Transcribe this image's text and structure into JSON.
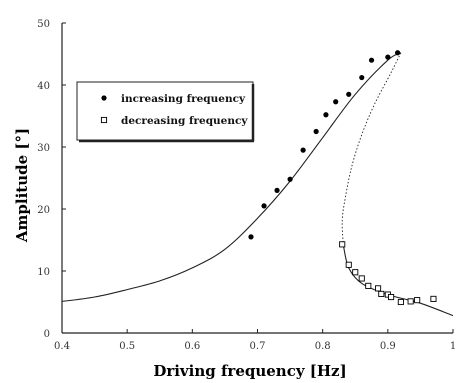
{
  "chart_data": {
    "type": "scatter",
    "title": "",
    "xlabel": "Driving frequency [Hz]",
    "ylabel": "Amplitude [°]",
    "xlim": [
      0.4,
      1.0
    ],
    "ylim": [
      0,
      50
    ],
    "x_ticks": [
      "0.4",
      "0.5",
      "0.6",
      "0.7",
      "0.8",
      "0.9",
      "1"
    ],
    "y_ticks": [
      "0",
      "10",
      "20",
      "30",
      "40",
      "50"
    ],
    "grid": false,
    "legend_position": "upper-left",
    "series": [
      {
        "name": "increasing frequency",
        "marker": "filled-circle",
        "points": [
          [
            0.69,
            15.5
          ],
          [
            0.71,
            20.5
          ],
          [
            0.73,
            23
          ],
          [
            0.75,
            24.8
          ],
          [
            0.77,
            29.5
          ],
          [
            0.79,
            32.5
          ],
          [
            0.805,
            35.2
          ],
          [
            0.82,
            37.3
          ],
          [
            0.84,
            38.5
          ],
          [
            0.86,
            41.2
          ],
          [
            0.875,
            44
          ],
          [
            0.9,
            44.5
          ],
          [
            0.915,
            45.2
          ]
        ]
      },
      {
        "name": "decreasing frequency",
        "marker": "open-square",
        "points": [
          [
            0.83,
            14.3
          ],
          [
            0.84,
            11
          ],
          [
            0.85,
            9.8
          ],
          [
            0.86,
            8.8
          ],
          [
            0.87,
            7.6
          ],
          [
            0.885,
            7.2
          ],
          [
            0.89,
            6.3
          ],
          [
            0.9,
            6.2
          ],
          [
            0.905,
            5.8
          ],
          [
            0.92,
            5
          ],
          [
            0.935,
            5.1
          ],
          [
            0.945,
            5.3
          ],
          [
            0.97,
            5.5
          ]
        ]
      }
    ],
    "curves": [
      {
        "style": "solid",
        "points": [
          [
            0.4,
            5.1
          ],
          [
            0.45,
            5.8
          ],
          [
            0.5,
            7
          ],
          [
            0.55,
            8.4
          ],
          [
            0.6,
            10.5
          ],
          [
            0.65,
            13.5
          ],
          [
            0.7,
            18.5
          ],
          [
            0.75,
            24.5
          ],
          [
            0.8,
            31.5
          ],
          [
            0.85,
            38.5
          ],
          [
            0.9,
            44
          ],
          [
            0.92,
            45.2
          ]
        ]
      },
      {
        "style": "dotted",
        "points": [
          [
            0.92,
            45.2
          ],
          [
            0.905,
            42
          ],
          [
            0.88,
            37
          ],
          [
            0.86,
            32
          ],
          [
            0.845,
            27
          ],
          [
            0.835,
            22
          ],
          [
            0.83,
            18
          ],
          [
            0.832,
            14
          ]
        ]
      },
      {
        "style": "solid",
        "points": [
          [
            0.832,
            14
          ],
          [
            0.84,
            10.5
          ],
          [
            0.86,
            8
          ],
          [
            0.9,
            6.2
          ],
          [
            0.95,
            4.8
          ],
          [
            1.0,
            2.8
          ]
        ]
      }
    ]
  }
}
